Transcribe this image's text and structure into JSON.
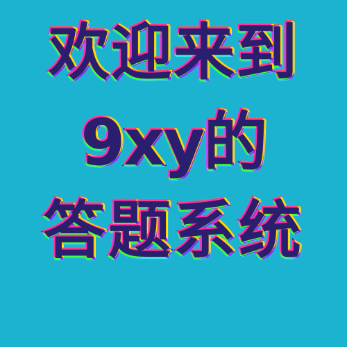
{
  "background_color": "#1bb3cf",
  "text_color": "#2a1f6e",
  "lines": [
    "欢迎来到",
    "9xy的",
    "答题系统"
  ]
}
